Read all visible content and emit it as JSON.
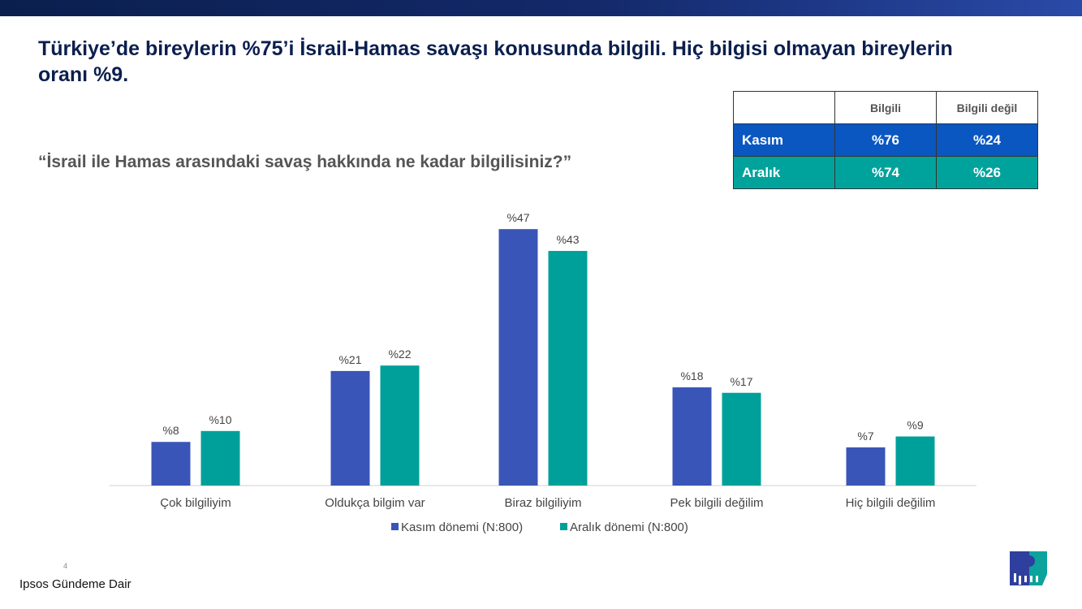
{
  "title": "Türkiye’de bireylerin %75’i İsrail-Hamas savaşı konusunda bilgili. Hiç bilgisi olmayan bireylerin oranı %9.",
  "question": "“İsrail ile Hamas arasındaki savaş hakkında ne kadar bilgilisiniz?”",
  "summary_table": {
    "headers": [
      "",
      "Bilgili",
      "Bilgili değil"
    ],
    "rows": [
      {
        "label": "Kasım",
        "values": [
          "%76",
          "%24"
        ],
        "color": "#0a57c1"
      },
      {
        "label": "Aralık",
        "values": [
          "%74",
          "%26"
        ],
        "color": "#00a39c"
      }
    ]
  },
  "footer": {
    "text": "Ipsos Gündeme Dair",
    "page": "4",
    "logo": "Ipsos"
  },
  "chart_data": {
    "type": "bar",
    "categories": [
      "Çok bilgiliyim",
      "Oldukça bilgim var",
      "Biraz bilgiliyim",
      "Pek bilgili değilim",
      "Hiç bilgili değilim"
    ],
    "series": [
      {
        "name": "Kasım dönemi (N:800)",
        "values": [
          8,
          21,
          47,
          18,
          7
        ],
        "labels": [
          "%8",
          "%21",
          "%47",
          "%18",
          "%7"
        ],
        "color": "#3a55b8"
      },
      {
        "name": "Aralık dönemi (N:800)",
        "values": [
          10,
          22,
          43,
          17,
          9
        ],
        "labels": [
          "%10",
          "%22",
          "%43",
          "%17",
          "%9"
        ],
        "color": "#00a09a"
      }
    ],
    "ylim": [
      0,
      50
    ],
    "grid": false,
    "legend": "bottom"
  }
}
